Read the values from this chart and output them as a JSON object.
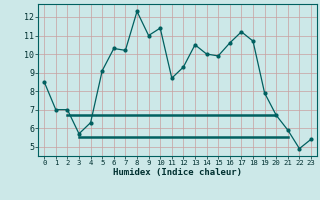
{
  "xlabel": "Humidex (Indice chaleur)",
  "x_values": [
    0,
    1,
    2,
    3,
    4,
    5,
    6,
    7,
    8,
    9,
    10,
    11,
    12,
    13,
    14,
    15,
    16,
    17,
    18,
    19,
    20,
    21,
    22,
    23
  ],
  "y_main": [
    8.5,
    7.0,
    7.0,
    5.7,
    6.3,
    9.1,
    10.3,
    10.2,
    12.3,
    11.0,
    11.4,
    8.7,
    9.3,
    10.5,
    10.0,
    9.9,
    10.6,
    11.2,
    10.7,
    7.9,
    6.7,
    5.9,
    4.9,
    5.4
  ],
  "x_maxline_start": 2,
  "x_maxline_end": 20,
  "y_maxline": 6.7,
  "x_minline_start": 3,
  "x_minline_end": 21,
  "y_minline": 5.55,
  "line_color": "#006060",
  "bg_color": "#cce8e8",
  "grid_color": "#b0d0d0",
  "ylim_min": 4.5,
  "ylim_max": 12.7,
  "yticks": [
    5,
    6,
    7,
    8,
    9,
    10,
    11,
    12
  ],
  "xticks": [
    0,
    1,
    2,
    3,
    4,
    5,
    6,
    7,
    8,
    9,
    10,
    11,
    12,
    13,
    14,
    15,
    16,
    17,
    18,
    19,
    20,
    21,
    22,
    23
  ]
}
